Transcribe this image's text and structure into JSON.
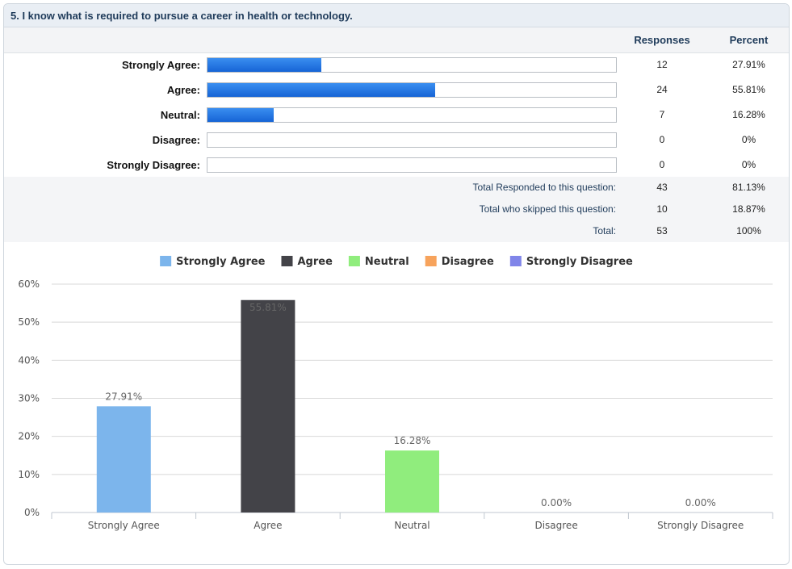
{
  "question": {
    "title": "5. I know what is required to pursue a career in health or technology."
  },
  "table": {
    "header_responses": "Responses",
    "header_percent": "Percent",
    "rows": [
      {
        "label": "Strongly Agree:",
        "responses": "12",
        "percent": "27.91%",
        "fraction": 0.2791
      },
      {
        "label": "Agree:",
        "responses": "24",
        "percent": "55.81%",
        "fraction": 0.5581
      },
      {
        "label": "Neutral:",
        "responses": "7",
        "percent": "16.28%",
        "fraction": 0.1628
      },
      {
        "label": "Disagree:",
        "responses": "0",
        "percent": "0%",
        "fraction": 0
      },
      {
        "label": "Strongly Disagree:",
        "responses": "0",
        "percent": "0%",
        "fraction": 0
      }
    ],
    "totals": [
      {
        "label": "Total Responded to this question:",
        "responses": "43",
        "percent": "81.13%"
      },
      {
        "label": "Total who skipped this question:",
        "responses": "10",
        "percent": "18.87%"
      },
      {
        "label": "Total:",
        "responses": "53",
        "percent": "100%"
      }
    ]
  },
  "chart_data": {
    "type": "bar",
    "categories": [
      "Strongly Agree",
      "Agree",
      "Neutral",
      "Disagree",
      "Strongly Disagree"
    ],
    "values": [
      27.91,
      55.81,
      16.28,
      0.0,
      0.0
    ],
    "value_labels": [
      "27.91%",
      "55.81%",
      "16.28%",
      "0.00%",
      "0.00%"
    ],
    "colors": [
      "#7cb5ec",
      "#434348",
      "#90ed7d",
      "#f7a35c",
      "#8085e9"
    ],
    "ylim": [
      0,
      60
    ],
    "yticks": [
      "0%",
      "10%",
      "20%",
      "30%",
      "40%",
      "50%",
      "60%"
    ],
    "legend": [
      "Strongly Agree",
      "Agree",
      "Neutral",
      "Disagree",
      "Strongly Disagree"
    ],
    "legend_position": "top-center",
    "grid": true
  }
}
